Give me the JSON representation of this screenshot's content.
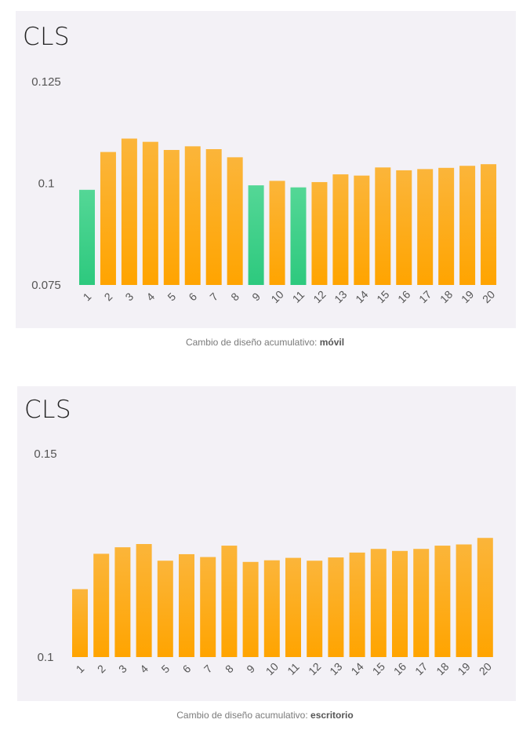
{
  "colors": {
    "orange": "#ffa400",
    "orange_light": "#fbb53a",
    "green": "#2dc97e",
    "green_light": "#54d796",
    "panel_bg": "#f3f1f6"
  },
  "charts": [
    {
      "title": "CLS",
      "caption_prefix": "Cambio de diseño acumulativo: ",
      "caption_bold": "móvil"
    },
    {
      "title": "CLS",
      "caption_prefix": "Cambio de diseño acumulativo: ",
      "caption_bold": "escritorio"
    }
  ],
  "chart_data": [
    {
      "type": "bar",
      "title": "CLS",
      "categories": [
        "1",
        "2",
        "3",
        "4",
        "5",
        "6",
        "7",
        "8",
        "9",
        "10",
        "11",
        "12",
        "13",
        "14",
        "15",
        "16",
        "17",
        "18",
        "19",
        "20"
      ],
      "values": [
        0.0984,
        0.1077,
        0.111,
        0.1102,
        0.1082,
        0.1091,
        0.1084,
        0.1064,
        0.0995,
        0.1006,
        0.099,
        0.1003,
        0.1022,
        0.1019,
        0.1039,
        0.1032,
        0.1035,
        0.1038,
        0.1043,
        0.1047
      ],
      "bar_colors": [
        "green",
        "orange",
        "orange",
        "orange",
        "orange",
        "orange",
        "orange",
        "orange",
        "green",
        "orange",
        "green",
        "orange",
        "orange",
        "orange",
        "orange",
        "orange",
        "orange",
        "orange",
        "orange",
        "orange"
      ],
      "yticks": [
        0.075,
        0.1,
        0.125
      ],
      "ytick_labels": [
        "0.075",
        "0.1",
        "0.125"
      ],
      "ylim": [
        0.075,
        0.125
      ],
      "grid": false
    },
    {
      "type": "bar",
      "title": "CLS",
      "categories": [
        "1",
        "2",
        "3",
        "4",
        "5",
        "6",
        "7",
        "8",
        "9",
        "10",
        "11",
        "12",
        "13",
        "14",
        "15",
        "16",
        "17",
        "18",
        "19",
        "20"
      ],
      "values": [
        0.1167,
        0.1254,
        0.127,
        0.1278,
        0.1237,
        0.1253,
        0.1246,
        0.1274,
        0.1234,
        0.1238,
        0.1244,
        0.1237,
        0.1245,
        0.1257,
        0.1266,
        0.1261,
        0.1266,
        0.1274,
        0.1277,
        0.1293
      ],
      "bar_colors": [
        "orange",
        "orange",
        "orange",
        "orange",
        "orange",
        "orange",
        "orange",
        "orange",
        "orange",
        "orange",
        "orange",
        "orange",
        "orange",
        "orange",
        "orange",
        "orange",
        "orange",
        "orange",
        "orange",
        "orange"
      ],
      "yticks": [
        0.1,
        0.15
      ],
      "ytick_labels": [
        "0.1",
        "0.15"
      ],
      "ylim": [
        0.1,
        0.15
      ],
      "grid": false
    }
  ]
}
